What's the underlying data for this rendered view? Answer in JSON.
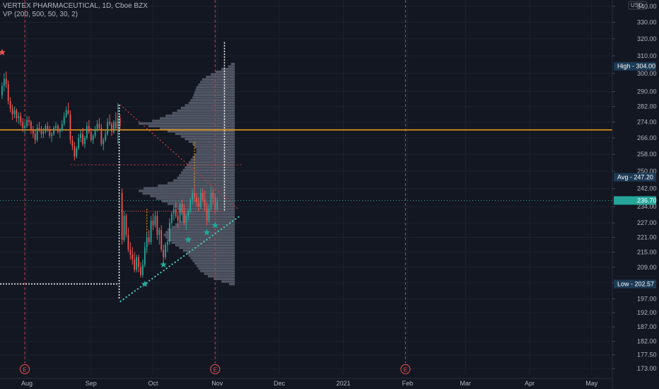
{
  "header": {
    "title": "VERTEX PHARMACEUTICAL, 1D, Cboe BZX",
    "indicator": "VP (200, 500, 50, 30, 2)"
  },
  "axis_currency": "USD",
  "colors": {
    "background": "#131722",
    "grid": "#1e2230",
    "up": "#26a69a",
    "down": "#ef5350",
    "orange": "#f7a21b",
    "volume_profile": "#5d6270",
    "cyan": "#4dd0c4",
    "red_dotted": "#c73e3e"
  },
  "price_tags": [
    {
      "label": "High",
      "value": "304.00",
      "price": 304.0,
      "bg": "#1c3a55"
    },
    {
      "label": "Avg",
      "value": "247.20",
      "price": 247.2,
      "bg": "#1c3a55"
    },
    {
      "label": "",
      "value": "236.70",
      "price": 236.7,
      "bg": "#26a69a"
    },
    {
      "label": "Low",
      "value": "202.57",
      "price": 202.57,
      "bg": "#1c3a55"
    }
  ],
  "earnings_marker": "E",
  "chart_data": {
    "type": "candlestick",
    "price_axis": {
      "scale": "log",
      "ylim": [
        171,
        344
      ],
      "ticks": [
        340,
        330,
        320,
        310,
        300,
        290,
        282,
        274,
        266,
        258,
        250,
        242,
        234,
        227,
        221,
        215,
        209,
        203,
        197,
        192,
        187,
        182,
        177.5,
        173
      ]
    },
    "time_axis": {
      "labels": [
        "Aug",
        "Sep",
        "Oct",
        "Nov",
        "Dec",
        "2021",
        "Feb",
        "Mar",
        "Apr",
        "May"
      ],
      "label_days": [
        24,
        55,
        85,
        116,
        146,
        177,
        208,
        236,
        267,
        297
      ],
      "xlim": [
        11,
        307
      ]
    },
    "earnings_days": [
      23,
      115,
      207
    ],
    "candles": [
      [
        12,
        288,
        295,
        286,
        293
      ],
      [
        13,
        293,
        300,
        290,
        297
      ],
      [
        14,
        297,
        301,
        292,
        294
      ],
      [
        15,
        294,
        296,
        283,
        285
      ],
      [
        16,
        285,
        287,
        279,
        281
      ],
      [
        17,
        281,
        283,
        275,
        278
      ],
      [
        18,
        278,
        282,
        276,
        280
      ],
      [
        19,
        280,
        281,
        274,
        276
      ],
      [
        20,
        276,
        279,
        273,
        277
      ],
      [
        21,
        277,
        279,
        272,
        274
      ],
      [
        22,
        274,
        276,
        269,
        271
      ],
      [
        23,
        271,
        274,
        268,
        272
      ],
      [
        24,
        272,
        277,
        271,
        275
      ],
      [
        25,
        275,
        277,
        272,
        274
      ],
      [
        26,
        274,
        275,
        268,
        270
      ],
      [
        27,
        270,
        272,
        266,
        268
      ],
      [
        28,
        268,
        270,
        263,
        265
      ],
      [
        29,
        265,
        273,
        264,
        271
      ],
      [
        30,
        271,
        274,
        269,
        270
      ],
      [
        31,
        270,
        272,
        266,
        268
      ],
      [
        32,
        268,
        271,
        266,
        269
      ],
      [
        33,
        269,
        273,
        268,
        272
      ],
      [
        34,
        272,
        274,
        269,
        270
      ],
      [
        35,
        270,
        272,
        266,
        267
      ],
      [
        36,
        267,
        269,
        264,
        268
      ],
      [
        37,
        268,
        272,
        267,
        271
      ],
      [
        38,
        271,
        274,
        270,
        272
      ],
      [
        39,
        272,
        273,
        268,
        269
      ],
      [
        40,
        269,
        271,
        266,
        270
      ],
      [
        41,
        270,
        275,
        269,
        273
      ],
      [
        42,
        273,
        279,
        272,
        277
      ],
      [
        43,
        277,
        282,
        276,
        280
      ],
      [
        44,
        280,
        284,
        278,
        278
      ],
      [
        45,
        278,
        280,
        263,
        265
      ],
      [
        46,
        265,
        267,
        260,
        262
      ],
      [
        47,
        262,
        264,
        255,
        257
      ],
      [
        48,
        257,
        262,
        256,
        261
      ],
      [
        49,
        261,
        268,
        260,
        266
      ],
      [
        50,
        266,
        270,
        264,
        268
      ],
      [
        51,
        268,
        271,
        262,
        263
      ],
      [
        52,
        263,
        267,
        261,
        266
      ],
      [
        53,
        266,
        274,
        265,
        272
      ],
      [
        54,
        272,
        275,
        268,
        269
      ],
      [
        55,
        269,
        271,
        264,
        265
      ],
      [
        56,
        265,
        268,
        263,
        267
      ],
      [
        57,
        267,
        272,
        266,
        270
      ],
      [
        58,
        270,
        275,
        269,
        273
      ],
      [
        59,
        273,
        276,
        270,
        271
      ],
      [
        60,
        271,
        273,
        262,
        263
      ],
      [
        61,
        263,
        266,
        260,
        265
      ],
      [
        62,
        265,
        270,
        264,
        268
      ],
      [
        63,
        268,
        276,
        267,
        274
      ],
      [
        64,
        274,
        278,
        272,
        273
      ],
      [
        65,
        273,
        274,
        267,
        269
      ],
      [
        66,
        269,
        275,
        268,
        274
      ],
      [
        67,
        274,
        279,
        270,
        271
      ],
      [
        68,
        271,
        284,
        263,
        276
      ],
      [
        69,
        276,
        278,
        270,
        272
      ],
      [
        70,
        240,
        242,
        218,
        220
      ],
      [
        71,
        220,
        232,
        219,
        230
      ],
      [
        72,
        230,
        231,
        221,
        222
      ],
      [
        73,
        222,
        225,
        215,
        216
      ],
      [
        74,
        216,
        219,
        212,
        214
      ],
      [
        75,
        214,
        217,
        210,
        212
      ],
      [
        76,
        212,
        215,
        207,
        208
      ],
      [
        77,
        208,
        214,
        207,
        213
      ],
      [
        78,
        213,
        214,
        207,
        209
      ],
      [
        79,
        209,
        211,
        205,
        206
      ],
      [
        80,
        206,
        212,
        205,
        210
      ],
      [
        81,
        210,
        219,
        209,
        217
      ],
      [
        82,
        217,
        223,
        215,
        221
      ],
      [
        83,
        221,
        224,
        218,
        219
      ],
      [
        84,
        219,
        230,
        218,
        228
      ],
      [
        85,
        228,
        231,
        224,
        226
      ],
      [
        86,
        226,
        232,
        225,
        230
      ],
      [
        87,
        230,
        232,
        220,
        222
      ],
      [
        88,
        222,
        225,
        218,
        224
      ],
      [
        89,
        224,
        226,
        215,
        216
      ],
      [
        90,
        216,
        218,
        211,
        213
      ],
      [
        91,
        213,
        219,
        212,
        218
      ],
      [
        92,
        218,
        220,
        215,
        219
      ],
      [
        93,
        219,
        229,
        218,
        227
      ],
      [
        94,
        227,
        232,
        226,
        231
      ],
      [
        95,
        231,
        234,
        228,
        233
      ],
      [
        96,
        233,
        236,
        229,
        230
      ],
      [
        97,
        230,
        232,
        225,
        228
      ],
      [
        98,
        228,
        236,
        227,
        235
      ],
      [
        99,
        235,
        237,
        231,
        232
      ],
      [
        100,
        232,
        235,
        226,
        227
      ],
      [
        101,
        227,
        231,
        224,
        230
      ],
      [
        102,
        230,
        233,
        228,
        232
      ],
      [
        103,
        232,
        238,
        231,
        237
      ],
      [
        104,
        237,
        242,
        235,
        240
      ],
      [
        105,
        240,
        243,
        236,
        238
      ],
      [
        106,
        238,
        240,
        234,
        236
      ],
      [
        107,
        236,
        238,
        232,
        234
      ],
      [
        108,
        234,
        242,
        233,
        240
      ],
      [
        109,
        240,
        242,
        236,
        237
      ],
      [
        110,
        237,
        241,
        232,
        234
      ],
      [
        111,
        234,
        236,
        226,
        228
      ],
      [
        112,
        228,
        235,
        227,
        233
      ],
      [
        113,
        233,
        243,
        232,
        240
      ],
      [
        114,
        240,
        242,
        235,
        238
      ],
      [
        115,
        238,
        240,
        231,
        233
      ],
      [
        116,
        233,
        238,
        232,
        236
      ]
    ],
    "volume_profile": {
      "price_range": [
        202,
        306
      ],
      "poc": 270,
      "value_area_high": 304,
      "value_area_low": 202.57,
      "bins_top_to_bottom": [
        4,
        7,
        14,
        20,
        25,
        30,
        34,
        36,
        38,
        40,
        41,
        42,
        43,
        44,
        46,
        48,
        52,
        56,
        60,
        65,
        72,
        78,
        86,
        100,
        90,
        78,
        70,
        62,
        56,
        52,
        48,
        44,
        42,
        40,
        40,
        42,
        44,
        46,
        48,
        50,
        52,
        54,
        56,
        58,
        60,
        64,
        70,
        80,
        95,
        100,
        96,
        88,
        82,
        76,
        70,
        64,
        60,
        58,
        56,
        55,
        55,
        58,
        62,
        66,
        70,
        72,
        74,
        72,
        70,
        66,
        62,
        58,
        54,
        50,
        48,
        46,
        44,
        42,
        40,
        38,
        36,
        32,
        28,
        22,
        14,
        6
      ]
    },
    "annotations": {
      "horizontal_lines": [
        {
          "price": 270,
          "style": "solid",
          "color": "orange"
        },
        {
          "price": 253,
          "style": "dotted",
          "color": "red"
        },
        {
          "price": 236.7,
          "style": "dotted",
          "color": "teal"
        },
        {
          "price": 232,
          "style": "dotted",
          "color": "white"
        },
        {
          "price": 202.57,
          "style": "dotted",
          "color": "white"
        }
      ],
      "trend_lines": [
        {
          "from_day": 69,
          "from_price": 283,
          "to_day": 126,
          "to_price": 233,
          "style": "dotted",
          "color": "red"
        },
        {
          "from_day": 69,
          "from_price": 196,
          "to_day": 127,
          "to_price": 230,
          "style": "dotted",
          "color": "cyan"
        }
      ],
      "stars": [
        {
          "day": 12,
          "price": 312,
          "color": "down"
        },
        {
          "day": 81,
          "price": 202.5,
          "color": "up"
        },
        {
          "day": 90,
          "price": 210,
          "color": "up"
        },
        {
          "day": 102,
          "price": 220,
          "color": "up"
        },
        {
          "day": 111,
          "price": 223,
          "color": "up"
        },
        {
          "day": 115,
          "price": 226,
          "color": "up"
        }
      ]
    }
  }
}
